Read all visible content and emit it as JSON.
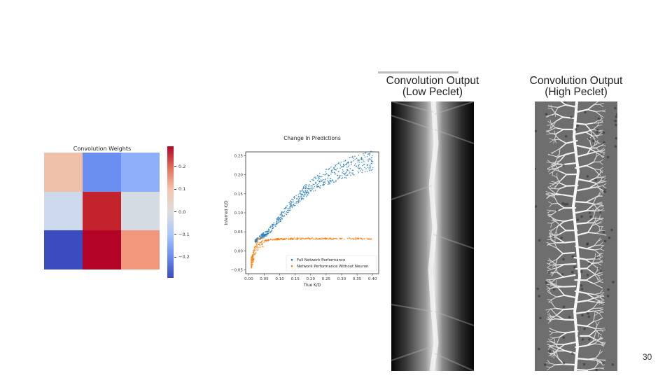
{
  "slide": {
    "page_number": "30"
  },
  "heatmap": {
    "title": "Convolution Weights",
    "cell_colors": [
      "#efc1ab",
      "#6b8ff0",
      "#8eb0fb",
      "#ccd8ec",
      "#c4222c",
      "#d5dbe3",
      "#3b4cc0",
      "#b30326",
      "#f1977c"
    ],
    "colorbar_ticks": [
      "0.2",
      "0.1",
      "0.0",
      "−0.1",
      "−0.2"
    ],
    "colormap": "coolwarm"
  },
  "scatter": {
    "title": "Change In Predictions",
    "xlabel": "True K/D",
    "ylabel": "Inferred K/D",
    "x_ticks": [
      "0.00",
      "0.05",
      "0.10",
      "0.15",
      "0.20",
      "0.25",
      "0.30",
      "0.35",
      "0.40"
    ],
    "y_ticks": [
      "−0.05",
      "0.00",
      "0.05",
      "0.10",
      "0.15",
      "0.20",
      "0.25"
    ],
    "legend": [
      "Full Network Performance",
      "Network Performance Without Neuron"
    ],
    "series_colors": [
      "#1f77b4",
      "#ff7f0e"
    ]
  },
  "chart_data": [
    {
      "type": "heatmap",
      "title": "Convolution Weights",
      "values": [
        [
          0.05,
          -0.15,
          -0.12
        ],
        [
          -0.03,
          0.26,
          -0.01
        ],
        [
          -0.27,
          0.29,
          0.12
        ]
      ],
      "colorbar_range": [
        -0.29,
        0.29
      ],
      "colorbar_ticks": [
        0.2,
        0.1,
        0.0,
        -0.1,
        -0.2
      ]
    },
    {
      "type": "scatter",
      "title": "Change In Predictions",
      "xlabel": "True K/D",
      "ylabel": "Inferred K/D",
      "xlim": [
        -0.01,
        0.42
      ],
      "ylim": [
        -0.06,
        0.26
      ],
      "legend_placement": "bottom-right",
      "series": [
        {
          "name": "Full Network Performance",
          "x": [
            0.02,
            0.04,
            0.06,
            0.08,
            0.1,
            0.12,
            0.14,
            0.16,
            0.18,
            0.2,
            0.22,
            0.24,
            0.26,
            0.28,
            0.3,
            0.32,
            0.34,
            0.36,
            0.38,
            0.4
          ],
          "y": [
            0.025,
            0.038,
            0.048,
            0.065,
            0.085,
            0.105,
            0.125,
            0.14,
            0.155,
            0.168,
            0.18,
            0.19,
            0.198,
            0.205,
            0.212,
            0.218,
            0.224,
            0.23,
            0.234,
            0.238
          ]
        },
        {
          "name": "Network Performance Without Neuron",
          "x": [
            0.01,
            0.02,
            0.03,
            0.04,
            0.06,
            0.08,
            0.1,
            0.15,
            0.2,
            0.25,
            0.3,
            0.35,
            0.4
          ],
          "y": [
            -0.03,
            0.005,
            0.018,
            0.024,
            0.028,
            0.03,
            0.031,
            0.032,
            0.032,
            0.032,
            0.032,
            0.032,
            0.032
          ]
        }
      ]
    }
  ],
  "panels": {
    "low_title_line1": "Convolution Output",
    "low_title_line2": "(Low Peclet)",
    "high_title_line1": "Convolution Output",
    "high_title_line2": "(High Peclet)"
  }
}
